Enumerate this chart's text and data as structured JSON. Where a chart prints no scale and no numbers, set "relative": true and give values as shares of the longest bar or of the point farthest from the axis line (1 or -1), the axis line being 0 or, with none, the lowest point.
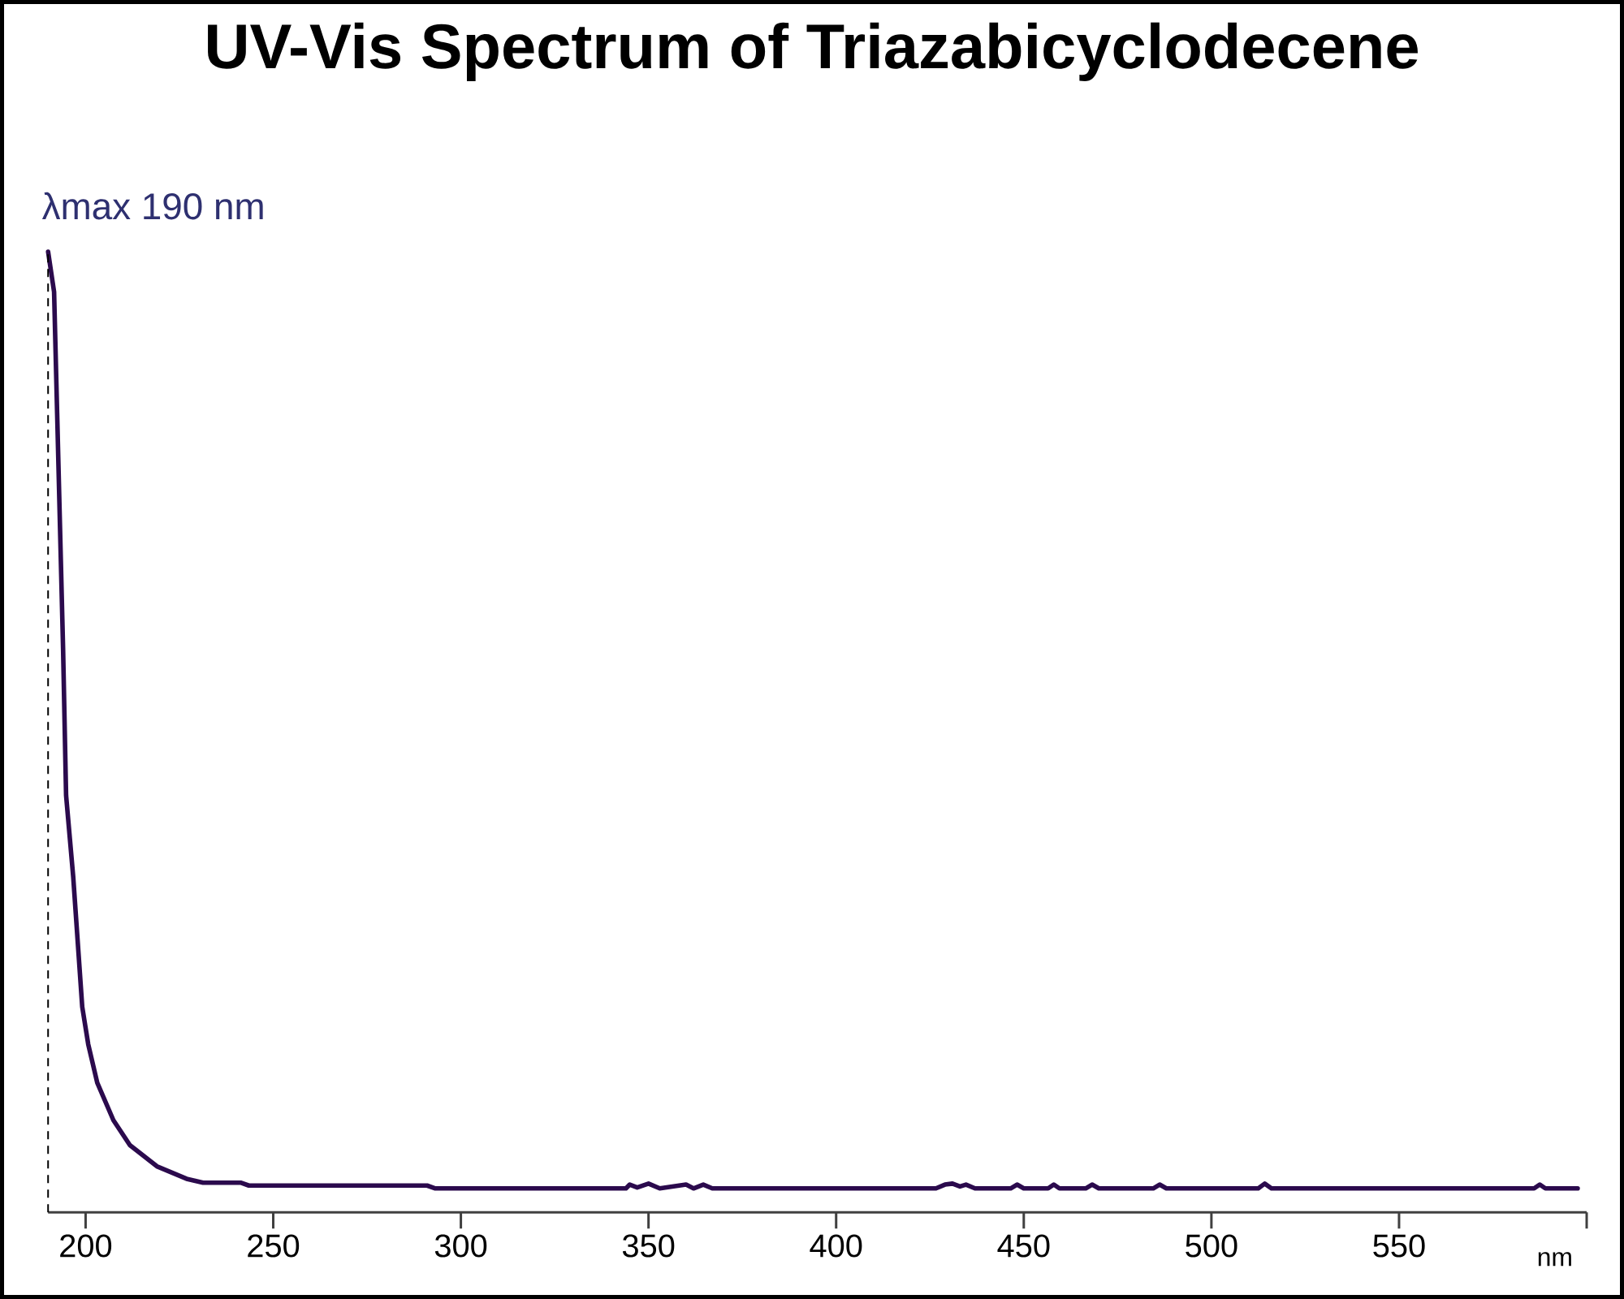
{
  "chart_data": {
    "type": "line",
    "title": "UV-Vis Spectrum of Triazabicyclodecene",
    "xlabel": "nm",
    "relative": true,
    "x": [
      190,
      191.6,
      194.0,
      194.8,
      196.7,
      199.1,
      200.7,
      203.1,
      207.4,
      211.8,
      219.0,
      226.9,
      231.3,
      241.3,
      243.5,
      291,
      293.2,
      344,
      345,
      347,
      350,
      353,
      360,
      362,
      364.6,
      367,
      426.6,
      429,
      431,
      433,
      434.6,
      437,
      446.5,
      448.2,
      450,
      456.5,
      458,
      459.5,
      466.5,
      468.2,
      470,
      484.5,
      486.2,
      488,
      512.5,
      514.2,
      516,
      586,
      587.5,
      589,
      597.6
    ],
    "series": [
      {
        "color": "#2b0a4d",
        "values": [
          1.0,
          0.958,
          0.586,
          0.434,
          0.349,
          0.214,
          0.175,
          0.135,
          0.096,
          0.07,
          0.048,
          0.035,
          0.031,
          0.031,
          0.028,
          0.028,
          0.025,
          0.025,
          0.029,
          0.026,
          0.03,
          0.025,
          0.029,
          0.025,
          0.029,
          0.025,
          0.025,
          0.029,
          0.03,
          0.027,
          0.029,
          0.025,
          0.025,
          0.029,
          0.025,
          0.025,
          0.029,
          0.025,
          0.025,
          0.029,
          0.025,
          0.025,
          0.029,
          0.025,
          0.025,
          0.03,
          0.025,
          0.025,
          0.029,
          0.025,
          0.025
        ]
      }
    ],
    "xlim": [
      190,
      600
    ],
    "xticks": [
      200,
      250,
      300,
      350,
      400,
      450,
      500,
      550,
      {
        "value": 600,
        "label": null
      }
    ],
    "ref_lines": [
      {
        "axis": "x",
        "value": 190,
        "label": "λmax  190 nm",
        "color": "#000000",
        "line_style": "dashed"
      }
    ]
  }
}
